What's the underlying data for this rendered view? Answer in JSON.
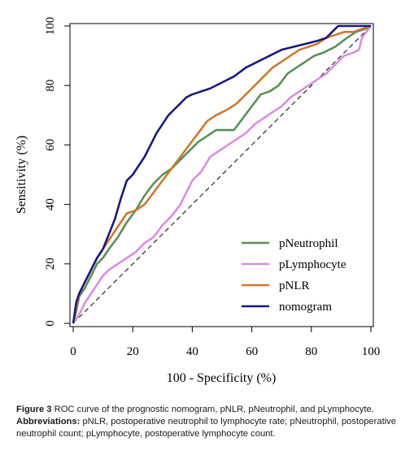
{
  "chart_data": {
    "type": "line",
    "xlabel": "100 - Specificity (%)",
    "ylabel": "Sensitivity (%)",
    "xlim": [
      0,
      100
    ],
    "ylim": [
      0,
      100
    ],
    "x_ticks": [
      "0",
      "20",
      "40",
      "60",
      "80",
      "100"
    ],
    "y_ticks": [
      "0",
      "20",
      "40",
      "60",
      "80",
      "100"
    ],
    "grid": false,
    "legend_position": "bottom-right",
    "reference_line": "diagonal",
    "series": [
      {
        "name": "pNeutrophil",
        "color": "#5a8f5a",
        "points": [
          [
            0,
            0
          ],
          [
            1,
            4
          ],
          [
            2,
            9
          ],
          [
            4,
            12
          ],
          [
            6,
            16
          ],
          [
            8,
            20
          ],
          [
            10,
            22
          ],
          [
            12,
            25
          ],
          [
            15,
            29
          ],
          [
            18,
            34
          ],
          [
            21,
            38
          ],
          [
            24,
            43
          ],
          [
            27,
            47
          ],
          [
            30,
            50
          ],
          [
            33,
            52
          ],
          [
            36,
            55
          ],
          [
            39,
            58
          ],
          [
            42,
            61
          ],
          [
            45,
            63
          ],
          [
            48,
            65
          ],
          [
            51,
            65
          ],
          [
            54,
            65
          ],
          [
            57,
            69
          ],
          [
            60,
            73
          ],
          [
            63,
            77
          ],
          [
            66,
            78
          ],
          [
            69,
            80
          ],
          [
            72,
            84
          ],
          [
            75,
            86
          ],
          [
            78,
            88
          ],
          [
            81,
            90
          ],
          [
            84,
            91
          ],
          [
            88,
            93
          ],
          [
            92,
            96
          ],
          [
            95,
            98
          ],
          [
            98,
            99
          ],
          [
            100,
            100
          ]
        ]
      },
      {
        "name": "pLymphocyte",
        "color": "#d98fe0",
        "points": [
          [
            0,
            0
          ],
          [
            2,
            3
          ],
          [
            4,
            7
          ],
          [
            6,
            10
          ],
          [
            8,
            13
          ],
          [
            10,
            16
          ],
          [
            12,
            18
          ],
          [
            15,
            20
          ],
          [
            18,
            22
          ],
          [
            21,
            24
          ],
          [
            24,
            27
          ],
          [
            27,
            29
          ],
          [
            30,
            33
          ],
          [
            33,
            36
          ],
          [
            36,
            40
          ],
          [
            38,
            44
          ],
          [
            40,
            48
          ],
          [
            43,
            51
          ],
          [
            46,
            56
          ],
          [
            49,
            58
          ],
          [
            52,
            60
          ],
          [
            55,
            62
          ],
          [
            58,
            64
          ],
          [
            61,
            67
          ],
          [
            64,
            69
          ],
          [
            67,
            71
          ],
          [
            70,
            73
          ],
          [
            73,
            76
          ],
          [
            76,
            78
          ],
          [
            79,
            80
          ],
          [
            82,
            82
          ],
          [
            85,
            84
          ],
          [
            88,
            87
          ],
          [
            91,
            90
          ],
          [
            94,
            91
          ],
          [
            96,
            92
          ],
          [
            97,
            96
          ],
          [
            100,
            100
          ]
        ]
      },
      {
        "name": "pNLR",
        "color": "#cc7a2e",
        "points": [
          [
            0,
            0
          ],
          [
            1,
            5
          ],
          [
            2,
            10
          ],
          [
            4,
            14
          ],
          [
            6,
            18
          ],
          [
            8,
            22
          ],
          [
            10,
            25
          ],
          [
            12,
            28
          ],
          [
            14,
            31
          ],
          [
            16,
            34
          ],
          [
            18,
            37
          ],
          [
            21,
            38
          ],
          [
            24,
            40
          ],
          [
            27,
            44
          ],
          [
            30,
            48
          ],
          [
            33,
            52
          ],
          [
            36,
            56
          ],
          [
            39,
            60
          ],
          [
            42,
            64
          ],
          [
            45,
            68
          ],
          [
            48,
            70
          ],
          [
            52,
            72
          ],
          [
            55,
            74
          ],
          [
            58,
            77
          ],
          [
            61,
            80
          ],
          [
            64,
            83
          ],
          [
            67,
            86
          ],
          [
            70,
            88
          ],
          [
            73,
            90
          ],
          [
            76,
            92
          ],
          [
            79,
            93
          ],
          [
            82,
            94
          ],
          [
            85,
            96
          ],
          [
            88,
            97
          ],
          [
            91,
            98
          ],
          [
            94,
            98
          ],
          [
            97,
            99
          ],
          [
            100,
            100
          ]
        ]
      },
      {
        "name": "nomogram",
        "color": "#1a1a7a",
        "points": [
          [
            0,
            0
          ],
          [
            1,
            7
          ],
          [
            2,
            10
          ],
          [
            4,
            14
          ],
          [
            6,
            18
          ],
          [
            8,
            22
          ],
          [
            10,
            25
          ],
          [
            12,
            30
          ],
          [
            14,
            35
          ],
          [
            16,
            42
          ],
          [
            18,
            48
          ],
          [
            20,
            50
          ],
          [
            22,
            53
          ],
          [
            24,
            56
          ],
          [
            26,
            60
          ],
          [
            28,
            64
          ],
          [
            30,
            67
          ],
          [
            32,
            70
          ],
          [
            34,
            72
          ],
          [
            36,
            74
          ],
          [
            38,
            76
          ],
          [
            40,
            77
          ],
          [
            43,
            78
          ],
          [
            46,
            79
          ],
          [
            50,
            81
          ],
          [
            54,
            83
          ],
          [
            58,
            86
          ],
          [
            62,
            88
          ],
          [
            66,
            90
          ],
          [
            70,
            92
          ],
          [
            74,
            93
          ],
          [
            78,
            94
          ],
          [
            82,
            95
          ],
          [
            85,
            96
          ],
          [
            87,
            98
          ],
          [
            89,
            100
          ],
          [
            100,
            100
          ]
        ]
      }
    ]
  },
  "caption": {
    "figure_label": "Figure 3",
    "figure_text": "ROC curve of the prognostic nomogram, pNLR, pNeutrophil, and pLymphocyte.",
    "abbrev_label": "Abbreviations:",
    "abbrev_text": "pNLR, postoperative neutrophil to lymphocyte rate; pNeutrophil, postoperative neutrophil count; pLymphocyte, postoperative lymphocyte count."
  }
}
